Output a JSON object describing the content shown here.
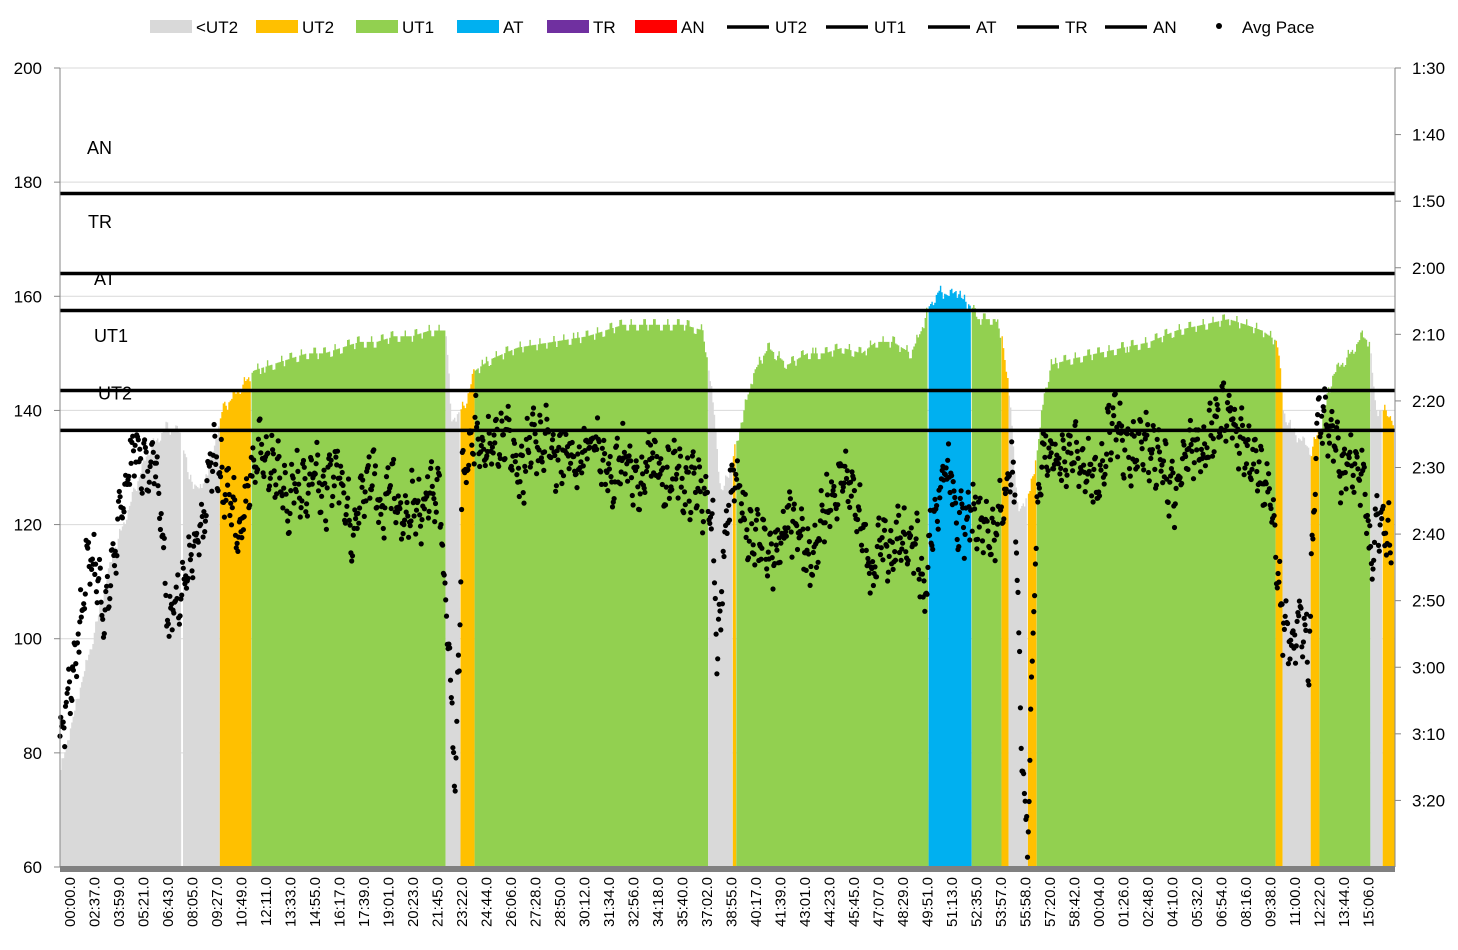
{
  "chart_data": {
    "type": "area",
    "legend": {
      "placement": "top",
      "entries": [
        {
          "label": "<UT2",
          "kind": "area",
          "color": "#d9d9d9"
        },
        {
          "label": "UT2",
          "kind": "area",
          "color": "#ffc000"
        },
        {
          "label": "UT1",
          "kind": "area",
          "color": "#92d050"
        },
        {
          "label": "AT",
          "kind": "area",
          "color": "#00b0f0"
        },
        {
          "label": "TR",
          "kind": "area",
          "color": "#7030a0"
        },
        {
          "label": "AN",
          "kind": "area",
          "color": "#ff0000"
        },
        {
          "label": "UT2",
          "kind": "line",
          "color": "#000000"
        },
        {
          "label": "UT1",
          "kind": "line",
          "color": "#000000"
        },
        {
          "label": "AT",
          "kind": "line",
          "color": "#000000"
        },
        {
          "label": "TR",
          "kind": "line",
          "color": "#000000"
        },
        {
          "label": "AN",
          "kind": "line",
          "color": "#000000"
        },
        {
          "label": "Avg Pace",
          "kind": "marker",
          "color": "#000000"
        }
      ]
    },
    "y_left": {
      "min": 60,
      "max": 200,
      "ticks": [
        "60",
        "80",
        "100",
        "120",
        "140",
        "160",
        "180",
        "200"
      ]
    },
    "y_right": {
      "ticks": [
        "1:30",
        "1:40",
        "1:50",
        "2:00",
        "2:10",
        "2:20",
        "2:30",
        "2:40",
        "2:50",
        "3:00",
        "3:10",
        "3:20"
      ]
    },
    "x_ticks": [
      "00:00.0",
      "02:37.0",
      "03:59.0",
      "05:21.0",
      "06:43.0",
      "08:05.0",
      "09:27.0",
      "10:49.0",
      "12:11.0",
      "13:33.0",
      "14:55.0",
      "16:17.0",
      "17:39.0",
      "19:01.0",
      "20:23.0",
      "21:45.0",
      "23:22.0",
      "24:44.0",
      "26:06.0",
      "27:28.0",
      "28:50.0",
      "30:12.0",
      "31:34.0",
      "32:56.0",
      "34:18.0",
      "35:40.0",
      "37:02.0",
      "38:55.0",
      "40:17.0",
      "41:39.0",
      "43:01.0",
      "44:23.0",
      "45:45.0",
      "47:07.0",
      "48:29.0",
      "49:51.0",
      "51:13.0",
      "52:35.0",
      "53:57.0",
      "55:58.0",
      "57:20.0",
      "58:42.0",
      "00:04.0",
      "01:26.0",
      "02:48.0",
      "04:10.0",
      "05:32.0",
      "06:54.0",
      "08:16.0",
      "09:38.0",
      "11:00.0",
      "12:22.0",
      "13:44.0",
      "15:06.0"
    ],
    "zone_thresholds": [
      {
        "name": "UT2",
        "value": 136.5
      },
      {
        "name": "UT1",
        "value": 143.5
      },
      {
        "name": "AT",
        "value": 157.5
      },
      {
        "name": "TR",
        "value": 164
      },
      {
        "name": "AN",
        "value": 178
      }
    ],
    "zone_labels": [
      {
        "text": "AN",
        "y": 186
      },
      {
        "text": "TR",
        "y": 173
      },
      {
        "text": "AT",
        "y": 163
      },
      {
        "text": "UT1",
        "y": 153
      },
      {
        "text": "UT2",
        "y": 143
      }
    ],
    "heart_rate_profile": [
      [
        0,
        77
      ],
      [
        1,
        90
      ],
      [
        2,
        102
      ],
      [
        3,
        115
      ],
      [
        4,
        124
      ],
      [
        5,
        133
      ],
      [
        6,
        137
      ],
      [
        6.9,
        136
      ],
      [
        7.3,
        128
      ],
      [
        8,
        126
      ],
      [
        8.7,
        133
      ],
      [
        9.2,
        140
      ],
      [
        10,
        143
      ],
      [
        11,
        147
      ],
      [
        12,
        148
      ],
      [
        13,
        149
      ],
      [
        14,
        150
      ],
      [
        15,
        150
      ],
      [
        16,
        151
      ],
      [
        17,
        152
      ],
      [
        18,
        152
      ],
      [
        19,
        153
      ],
      [
        20,
        153
      ],
      [
        21,
        154
      ],
      [
        21.95,
        154
      ],
      [
        22.25,
        138
      ],
      [
        23,
        141
      ],
      [
        23.6,
        147
      ],
      [
        24.5,
        149
      ],
      [
        26,
        151
      ],
      [
        28,
        152
      ],
      [
        30,
        153
      ],
      [
        32,
        155
      ],
      [
        34,
        155
      ],
      [
        35.5,
        155
      ],
      [
        36.6,
        154
      ],
      [
        37.2,
        140
      ],
      [
        37.6,
        125
      ],
      [
        38.3,
        132
      ],
      [
        38.9,
        140
      ],
      [
        39.5,
        147
      ],
      [
        40.3,
        151
      ],
      [
        41.4,
        148
      ],
      [
        42.5,
        150
      ],
      [
        43.5,
        150
      ],
      [
        44.5,
        151
      ],
      [
        45.6,
        150
      ],
      [
        46.4,
        152
      ],
      [
        47.4,
        152
      ],
      [
        48.4,
        150
      ],
      [
        49,
        154
      ],
      [
        49.4,
        158
      ],
      [
        49.6,
        159
      ],
      [
        50,
        161
      ],
      [
        50.6,
        160
      ],
      [
        51,
        161
      ],
      [
        51.2,
        160
      ],
      [
        51.9,
        158
      ],
      [
        52.2,
        156
      ],
      [
        53.2,
        156
      ],
      [
        53.6,
        153
      ],
      [
        54.1,
        140
      ],
      [
        54.5,
        122
      ],
      [
        55.2,
        126
      ],
      [
        55.6,
        133
      ],
      [
        56,
        143
      ],
      [
        56.4,
        148
      ],
      [
        57.5,
        149
      ],
      [
        59,
        150
      ],
      [
        60.5,
        151
      ],
      [
        62,
        152
      ],
      [
        63.5,
        154
      ],
      [
        65,
        155
      ],
      [
        66.5,
        156
      ],
      [
        67.5,
        155
      ],
      [
        68.4,
        154
      ],
      [
        69.3,
        152
      ],
      [
        69.6,
        140
      ],
      [
        70.2,
        136
      ],
      [
        71.2,
        133
      ],
      [
        71.8,
        138
      ],
      [
        72.4,
        146
      ],
      [
        73.4,
        150
      ],
      [
        74.1,
        153
      ],
      [
        74.5,
        152
      ],
      [
        74.9,
        140
      ],
      [
        75.6,
        140
      ],
      [
        76,
        136
      ]
    ],
    "zone_segments": [
      {
        "zone": "<UT2",
        "from": 0,
        "to": 6.9
      },
      {
        "zone": "<UT2",
        "from": 7.0,
        "to": 9.1
      },
      {
        "zone": "UT2",
        "from": 9.1,
        "to": 10.9
      },
      {
        "zone": "UT1",
        "from": 10.9,
        "to": 21.95
      },
      {
        "zone": "<UT2",
        "from": 21.95,
        "to": 22.8
      },
      {
        "zone": "UT2",
        "from": 22.8,
        "to": 23.6
      },
      {
        "zone": "UT1",
        "from": 23.6,
        "to": 36.9
      },
      {
        "zone": "<UT2",
        "from": 36.9,
        "to": 38.3
      },
      {
        "zone": "UT2",
        "from": 38.3,
        "to": 38.5
      },
      {
        "zone": "UT1",
        "from": 38.5,
        "to": 49.45
      },
      {
        "zone": "AT",
        "from": 49.45,
        "to": 51.9
      },
      {
        "zone": "UT1",
        "from": 51.9,
        "to": 53.6
      },
      {
        "zone": "UT2",
        "from": 53.6,
        "to": 54.0
      },
      {
        "zone": "<UT2",
        "from": 54.0,
        "to": 55.1
      },
      {
        "zone": "UT2",
        "from": 55.1,
        "to": 55.6
      },
      {
        "zone": "UT1",
        "from": 55.6,
        "to": 69.2
      },
      {
        "zone": "UT2",
        "from": 69.2,
        "to": 69.6
      },
      {
        "zone": "<UT2",
        "from": 69.6,
        "to": 71.2
      },
      {
        "zone": "UT2",
        "from": 71.2,
        "to": 71.7
      },
      {
        "zone": "UT1",
        "from": 71.7,
        "to": 74.6
      },
      {
        "zone": "<UT2",
        "from": 74.6,
        "to": 75.3
      },
      {
        "zone": "UT2",
        "from": 75.3,
        "to": 76
      }
    ],
    "avg_pace_trend": [
      [
        0,
        83
      ],
      [
        0.6,
        92
      ],
      [
        1.2,
        103
      ],
      [
        1.6,
        116
      ],
      [
        2.2,
        110
      ],
      [
        2.6,
        104
      ],
      [
        3,
        114
      ],
      [
        3.4,
        120
      ],
      [
        3.8,
        128
      ],
      [
        4.2,
        134
      ],
      [
        4.6,
        131
      ],
      [
        5,
        130
      ],
      [
        5.4,
        133
      ],
      [
        5.8,
        121
      ],
      [
        6.2,
        102
      ],
      [
        6.6,
        107
      ],
      [
        7,
        110
      ],
      [
        7.6,
        114
      ],
      [
        8.2,
        120
      ],
      [
        8.6,
        132
      ],
      [
        9,
        131
      ],
      [
        9.4,
        126
      ],
      [
        9.8,
        124
      ],
      [
        10.2,
        118
      ],
      [
        10.8,
        129
      ],
      [
        11.4,
        133
      ],
      [
        12,
        130
      ],
      [
        12.6,
        128
      ],
      [
        13,
        122
      ],
      [
        13.4,
        128
      ],
      [
        14,
        126
      ],
      [
        14.6,
        132
      ],
      [
        15,
        124
      ],
      [
        15.6,
        130
      ],
      [
        16,
        129
      ],
      [
        16.6,
        119
      ],
      [
        17.2,
        125
      ],
      [
        17.8,
        130
      ],
      [
        18.3,
        122
      ],
      [
        18.8,
        128
      ],
      [
        19.4,
        120
      ],
      [
        20,
        124
      ],
      [
        20.6,
        122
      ],
      [
        21,
        128
      ],
      [
        21.6,
        125
      ],
      [
        22.0,
        104
      ],
      [
        22.3,
        88
      ],
      [
        22.5,
        75
      ],
      [
        22.7,
        95
      ],
      [
        22.9,
        128
      ],
      [
        23.3,
        131
      ],
      [
        23.7,
        137
      ],
      [
        24.1,
        134
      ],
      [
        24.6,
        136
      ],
      [
        25,
        133
      ],
      [
        25.4,
        138
      ],
      [
        25.8,
        130
      ],
      [
        26.3,
        128
      ],
      [
        26.8,
        136
      ],
      [
        27.3,
        134
      ],
      [
        27.9,
        136
      ],
      [
        28.3,
        131
      ],
      [
        28.9,
        134
      ],
      [
        29.5,
        128
      ],
      [
        30,
        135
      ],
      [
        30.5,
        134
      ],
      [
        31,
        130
      ],
      [
        31.5,
        127
      ],
      [
        32,
        133
      ],
      [
        32.5,
        130
      ],
      [
        33,
        127
      ],
      [
        33.5,
        132
      ],
      [
        34,
        130
      ],
      [
        34.5,
        127
      ],
      [
        35,
        131
      ],
      [
        35.6,
        126
      ],
      [
        36.2,
        128
      ],
      [
        36.7,
        124
      ],
      [
        37.2,
        118
      ],
      [
        37.4,
        97
      ],
      [
        37.6,
        104
      ],
      [
        37.8,
        116
      ],
      [
        38,
        124
      ],
      [
        38.4,
        128
      ],
      [
        38.9,
        122
      ],
      [
        39.5,
        116
      ],
      [
        40,
        118
      ],
      [
        40.5,
        114
      ],
      [
        41,
        118
      ],
      [
        41.6,
        121
      ],
      [
        42.2,
        118
      ],
      [
        42.8,
        112
      ],
      [
        43.4,
        122
      ],
      [
        44,
        126
      ],
      [
        44.5,
        128
      ],
      [
        45,
        126
      ],
      [
        45.6,
        122
      ],
      [
        46.2,
        110
      ],
      [
        46.8,
        118
      ],
      [
        47.3,
        113
      ],
      [
        47.8,
        120
      ],
      [
        48.3,
        114
      ],
      [
        48.8,
        118
      ],
      [
        49.2,
        106
      ],
      [
        49.6,
        120
      ],
      [
        50,
        125
      ],
      [
        50.4,
        131
      ],
      [
        50.8,
        128
      ],
      [
        51.2,
        119
      ],
      [
        51.6,
        121
      ],
      [
        52,
        123
      ],
      [
        52.6,
        120
      ],
      [
        53.2,
        118
      ],
      [
        53.6,
        123
      ],
      [
        54.1,
        130
      ],
      [
        54.4,
        124
      ],
      [
        54.6,
        96
      ],
      [
        54.9,
        72
      ],
      [
        55.1,
        64
      ],
      [
        55.3,
        92
      ],
      [
        55.5,
        112
      ],
      [
        55.7,
        126
      ],
      [
        56,
        132
      ],
      [
        56.5,
        133
      ],
      [
        57,
        130
      ],
      [
        57.5,
        134
      ],
      [
        58,
        131
      ],
      [
        58.5,
        130
      ],
      [
        59,
        126
      ],
      [
        59.5,
        133
      ],
      [
        60,
        140
      ],
      [
        60.5,
        134
      ],
      [
        61,
        132
      ],
      [
        61.5,
        136
      ],
      [
        62,
        134
      ],
      [
        62.5,
        132
      ],
      [
        63,
        128
      ],
      [
        63.6,
        124
      ],
      [
        64,
        133
      ],
      [
        64.6,
        134
      ],
      [
        65.2,
        132
      ],
      [
        65.8,
        139
      ],
      [
        66.3,
        140
      ],
      [
        66.8,
        138
      ],
      [
        67.4,
        134
      ],
      [
        68,
        130
      ],
      [
        68.6,
        127
      ],
      [
        69.1,
        122
      ],
      [
        69.5,
        105
      ],
      [
        69.9,
        99
      ],
      [
        70.3,
        100
      ],
      [
        70.7,
        104
      ],
      [
        71.1,
        97
      ],
      [
        71.5,
        135
      ],
      [
        71.9,
        140
      ],
      [
        72.4,
        135
      ],
      [
        72.9,
        130
      ],
      [
        73.4,
        132
      ],
      [
        73.9,
        130
      ],
      [
        74.3,
        127
      ],
      [
        74.6,
        112
      ],
      [
        74.9,
        121
      ],
      [
        75.3,
        122
      ],
      [
        75.7,
        117
      ]
    ]
  }
}
